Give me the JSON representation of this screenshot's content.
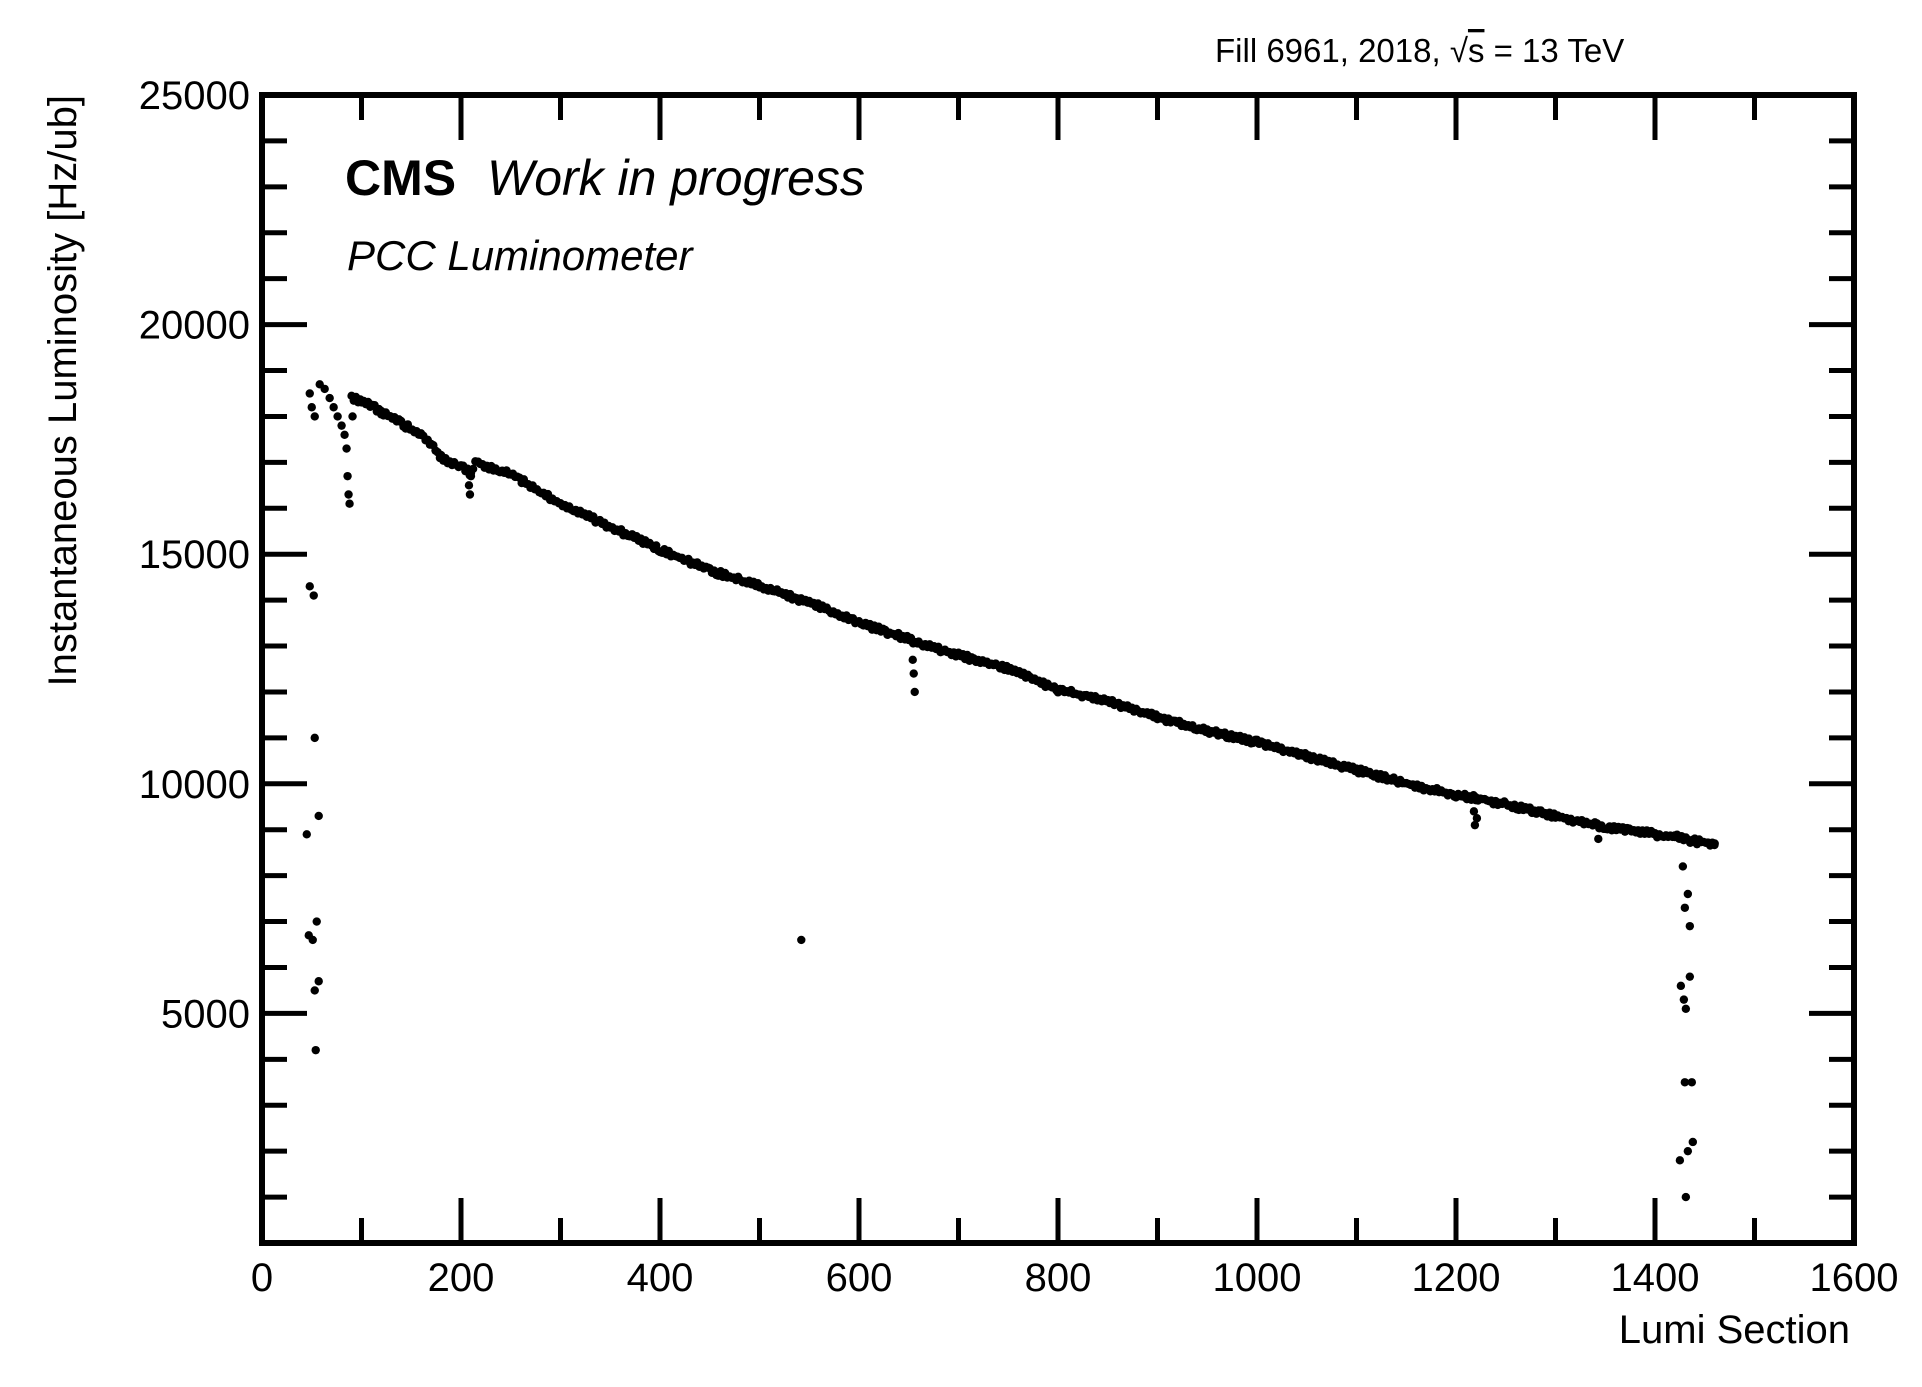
{
  "header": {
    "fill_text": "Fill 6961,  2018,  ",
    "sqrt_symbol": "√",
    "energy_symbol": "s",
    "energy_text": " = 13 TeV"
  },
  "annotations": {
    "experiment": "CMS",
    "status": "Work in progress",
    "detector": "PCC Luminometer"
  },
  "chart_data": {
    "type": "scatter",
    "xlabel": "Lumi Section",
    "ylabel": "Instantaneous Luminosity [Hz/ub]",
    "xlim": [
      0,
      1600
    ],
    "ylim": [
      0,
      25000
    ],
    "x_ticks": [
      "0",
      "200",
      "400",
      "600",
      "800",
      "1000",
      "1200",
      "1400",
      "1600"
    ],
    "y_ticks": [
      "5000",
      "10000",
      "15000",
      "20000",
      "25000"
    ],
    "grid": false,
    "legend": "none",
    "marker_color": "#000000",
    "main_trend": [
      [
        90,
        18400
      ],
      [
        100,
        18350
      ],
      [
        120,
        18100
      ],
      [
        140,
        17850
      ],
      [
        160,
        17600
      ],
      [
        170,
        17400
      ],
      [
        180,
        17100
      ],
      [
        200,
        16900
      ],
      [
        210,
        16750
      ],
      [
        215,
        17000
      ],
      [
        250,
        16750
      ],
      [
        300,
        16100
      ],
      [
        350,
        15600
      ],
      [
        400,
        15100
      ],
      [
        450,
        14650
      ],
      [
        500,
        14300
      ],
      [
        550,
        13950
      ],
      [
        600,
        13500
      ],
      [
        650,
        13150
      ],
      [
        660,
        13050
      ],
      [
        700,
        12800
      ],
      [
        750,
        12500
      ],
      [
        800,
        12050
      ],
      [
        850,
        11800
      ],
      [
        900,
        11450
      ],
      [
        950,
        11150
      ],
      [
        1000,
        10900
      ],
      [
        1050,
        10600
      ],
      [
        1100,
        10300
      ],
      [
        1150,
        10000
      ],
      [
        1200,
        9750
      ],
      [
        1220,
        9700
      ],
      [
        1250,
        9550
      ],
      [
        1300,
        9300
      ],
      [
        1350,
        9050
      ],
      [
        1400,
        8900
      ],
      [
        1420,
        8850
      ],
      [
        1440,
        8750
      ],
      [
        1460,
        8700
      ]
    ],
    "early_points": [
      [
        48,
        18500
      ],
      [
        50,
        18200
      ],
      [
        53,
        18000
      ],
      [
        58,
        18700
      ],
      [
        63,
        18600
      ],
      [
        68,
        18400
      ],
      [
        72,
        18200
      ],
      [
        76,
        18000
      ],
      [
        80,
        17800
      ],
      [
        83,
        17600
      ],
      [
        85,
        17300
      ],
      [
        86,
        16700
      ],
      [
        87,
        16300
      ],
      [
        88,
        16100
      ],
      [
        91,
        18000
      ]
    ],
    "outliers": [
      [
        48,
        14300
      ],
      [
        52,
        14100
      ],
      [
        45,
        8900
      ],
      [
        53,
        11000
      ],
      [
        57,
        9300
      ],
      [
        47,
        6700
      ],
      [
        51,
        6600
      ],
      [
        55,
        7000
      ],
      [
        53,
        5500
      ],
      [
        57,
        5700
      ],
      [
        54,
        4200
      ],
      [
        208,
        16500
      ],
      [
        209,
        16300
      ],
      [
        210,
        16700
      ],
      [
        542,
        6600
      ],
      [
        654,
        12700
      ],
      [
        655,
        12400
      ],
      [
        656,
        12000
      ],
      [
        1218,
        9400
      ],
      [
        1219,
        9100
      ],
      [
        1221,
        9250
      ],
      [
        1343,
        8800
      ],
      [
        1428,
        8200
      ],
      [
        1430,
        7300
      ],
      [
        1433,
        7600
      ],
      [
        1435,
        6900
      ],
      [
        1426,
        5600
      ],
      [
        1429,
        5300
      ],
      [
        1431,
        5100
      ],
      [
        1435,
        5800
      ],
      [
        1430,
        3500
      ],
      [
        1437,
        3500
      ],
      [
        1425,
        1800
      ],
      [
        1433,
        2000
      ],
      [
        1438,
        2200
      ],
      [
        1431,
        1000
      ]
    ]
  }
}
